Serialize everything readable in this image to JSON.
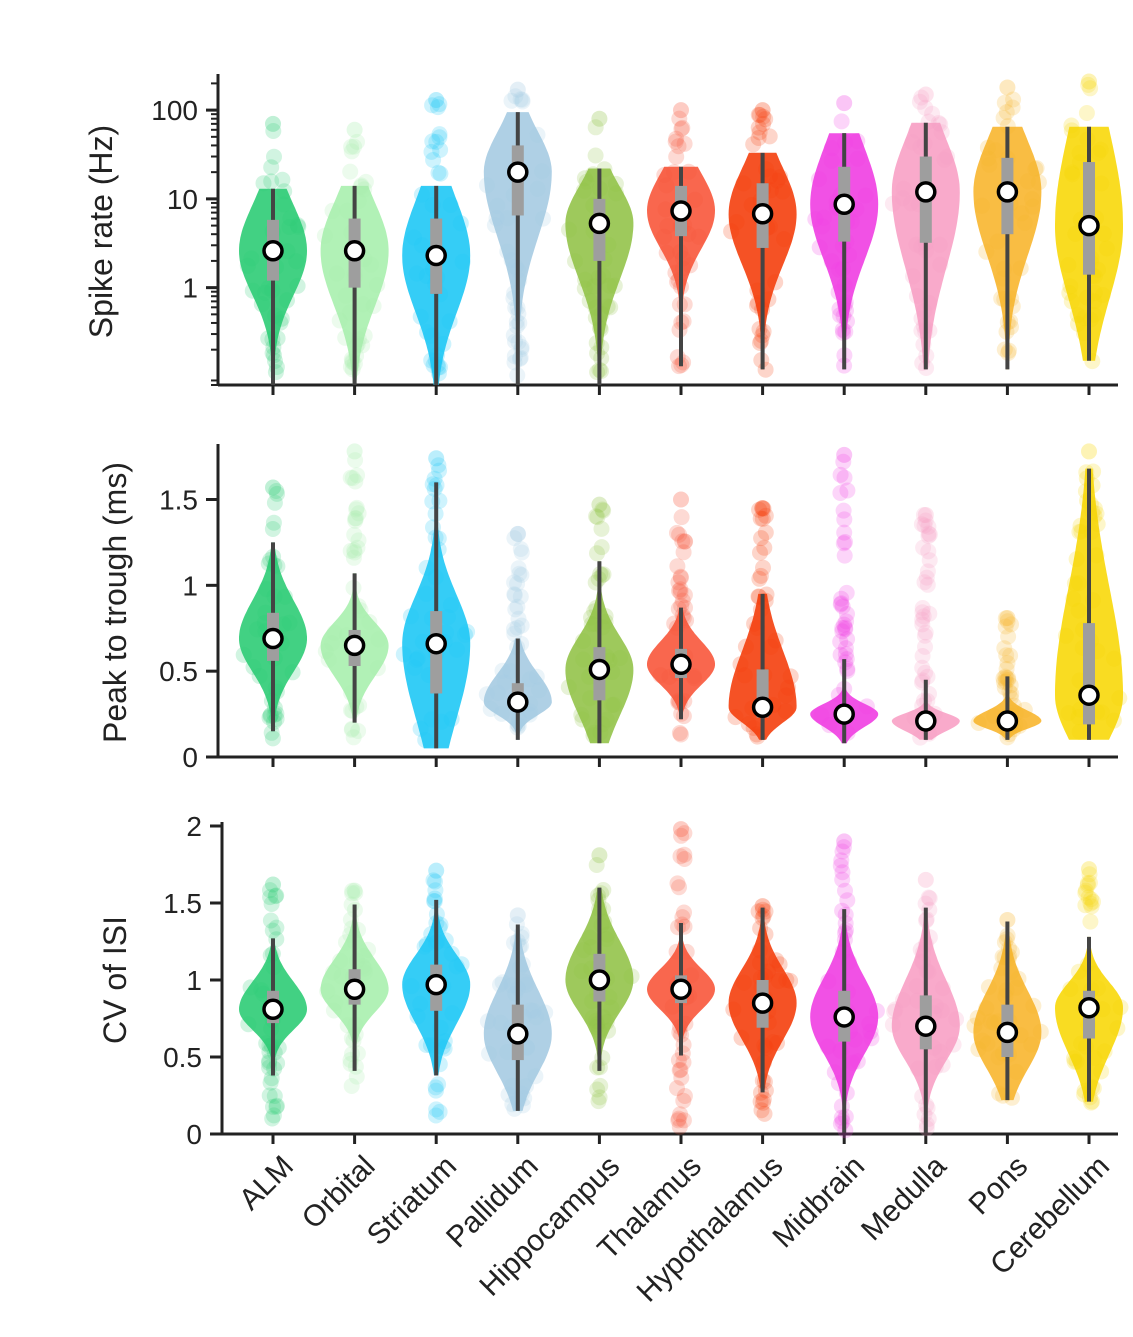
{
  "chart_data": [
    {
      "type": "violin",
      "ylabel": "Spike rate (Hz)",
      "yscale": "log",
      "ylim": [
        0.08,
        230
      ],
      "yticks": [
        {
          "value": 1,
          "label": "1"
        },
        {
          "value": 10,
          "label": "10"
        },
        {
          "value": 100,
          "label": "100"
        }
      ],
      "categories": [
        "ALM",
        "Orbital",
        "Striatum",
        "Pallidum",
        "Hippocampus",
        "Thalamus",
        "Hypothalamus",
        "Midbrain",
        "Medulla",
        "Pons",
        "Cerebellum"
      ],
      "series": [
        {
          "median": 2.6,
          "q1": 1.2,
          "q3": 5.8,
          "whisker_low": 0.08,
          "whisker_high": 13,
          "max": 70,
          "min": 0.08
        },
        {
          "median": 2.6,
          "q1": 1.0,
          "q3": 6.0,
          "whisker_low": 0.08,
          "whisker_high": 14,
          "max": 60,
          "min": 0.09
        },
        {
          "median": 2.3,
          "q1": 0.85,
          "q3": 6.0,
          "whisker_low": 0.08,
          "whisker_high": 14,
          "max": 130,
          "min": 0.08
        },
        {
          "median": 20,
          "q1": 6.5,
          "q3": 40,
          "whisker_low": 0.08,
          "whisker_high": 95,
          "max": 170,
          "min": 0.1
        },
        {
          "median": 5.3,
          "q1": 2.0,
          "q3": 10,
          "whisker_low": 0.08,
          "whisker_high": 22,
          "max": 80,
          "min": 0.09
        },
        {
          "median": 7.3,
          "q1": 3.8,
          "q3": 14,
          "whisker_low": 0.13,
          "whisker_high": 23,
          "max": 100,
          "min": 0.13
        },
        {
          "median": 6.8,
          "q1": 2.8,
          "q3": 15,
          "whisker_low": 0.12,
          "whisker_high": 33,
          "max": 100,
          "min": 0.11
        },
        {
          "median": 8.7,
          "q1": 3.3,
          "q3": 23,
          "whisker_low": 0.12,
          "whisker_high": 55,
          "max": 120,
          "min": 0.12
        },
        {
          "median": 12,
          "q1": 3.2,
          "q3": 30,
          "whisker_low": 0.12,
          "whisker_high": 72,
          "max": 150,
          "min": 0.12
        },
        {
          "median": 12,
          "q1": 4.0,
          "q3": 29,
          "whisker_low": 0.12,
          "whisker_high": 65,
          "max": 180,
          "min": 0.13
        },
        {
          "median": 5.0,
          "q1": 1.4,
          "q3": 26,
          "whisker_low": 0.15,
          "whisker_high": 65,
          "max": 210,
          "min": 0.14
        }
      ]
    },
    {
      "type": "violin",
      "ylabel": "Peak to trough (ms)",
      "yscale": "linear",
      "ylim": [
        0,
        1.8
      ],
      "yticks": [
        {
          "value": 0,
          "label": "0"
        },
        {
          "value": 0.5,
          "label": "0.5"
        },
        {
          "value": 1,
          "label": "1"
        },
        {
          "value": 1.5,
          "label": "1.5"
        }
      ],
      "categories": [
        "ALM",
        "Orbital",
        "Striatum",
        "Pallidum",
        "Hippocampus",
        "Thalamus",
        "Hypothalamus",
        "Midbrain",
        "Medulla",
        "Pons",
        "Cerebellum"
      ],
      "series": [
        {
          "median": 0.69,
          "q1": 0.56,
          "q3": 0.84,
          "whisker_low": 0.15,
          "whisker_high": 1.25,
          "max": 1.57,
          "min": 0.08
        },
        {
          "median": 0.65,
          "q1": 0.53,
          "q3": 0.74,
          "whisker_low": 0.2,
          "whisker_high": 1.07,
          "max": 1.78,
          "min": 0.1
        },
        {
          "median": 0.66,
          "q1": 0.37,
          "q3": 0.85,
          "whisker_low": 0.05,
          "whisker_high": 1.6,
          "max": 1.74,
          "min": 0.05
        },
        {
          "median": 0.32,
          "q1": 0.27,
          "q3": 0.43,
          "whisker_low": 0.1,
          "whisker_high": 0.69,
          "max": 1.3,
          "min": 0.1
        },
        {
          "median": 0.51,
          "q1": 0.33,
          "q3": 0.64,
          "whisker_low": 0.08,
          "whisker_high": 1.14,
          "max": 1.47,
          "min": 0.08
        },
        {
          "median": 0.54,
          "q1": 0.46,
          "q3": 0.63,
          "whisker_low": 0.22,
          "whisker_high": 0.87,
          "max": 1.5,
          "min": 0.1
        },
        {
          "median": 0.29,
          "q1": 0.23,
          "q3": 0.51,
          "whisker_low": 0.1,
          "whisker_high": 0.95,
          "max": 1.45,
          "min": 0.1
        },
        {
          "median": 0.25,
          "q1": 0.2,
          "q3": 0.29,
          "whisker_low": 0.08,
          "whisker_high": 0.57,
          "max": 1.76,
          "min": 0.08
        },
        {
          "median": 0.21,
          "q1": 0.17,
          "q3": 0.24,
          "whisker_low": 0.1,
          "whisker_high": 0.45,
          "max": 1.41,
          "min": 0.1
        },
        {
          "median": 0.21,
          "q1": 0.18,
          "q3": 0.25,
          "whisker_low": 0.1,
          "whisker_high": 0.47,
          "max": 0.81,
          "min": 0.1
        },
        {
          "median": 0.36,
          "q1": 0.19,
          "q3": 0.78,
          "whisker_low": 0.1,
          "whisker_high": 1.68,
          "max": 1.78,
          "min": 0.1
        }
      ]
    },
    {
      "type": "violin",
      "ylabel": "CV of ISI",
      "yscale": "linear",
      "ylim": [
        0,
        2
      ],
      "yticks": [
        {
          "value": 0,
          "label": "0"
        },
        {
          "value": 0.5,
          "label": "0.5"
        },
        {
          "value": 1,
          "label": "1"
        },
        {
          "value": 1.5,
          "label": "1.5"
        },
        {
          "value": 2,
          "label": "2"
        }
      ],
      "categories": [
        "ALM",
        "Orbital",
        "Striatum",
        "Pallidum",
        "Hippocampus",
        "Thalamus",
        "Hypothalamus",
        "Midbrain",
        "Medulla",
        "Pons",
        "Cerebellum"
      ],
      "series": [
        {
          "median": 0.81,
          "q1": 0.72,
          "q3": 0.93,
          "whisker_low": 0.38,
          "whisker_high": 1.27,
          "max": 1.62,
          "min": 0.03
        },
        {
          "median": 0.94,
          "q1": 0.84,
          "q3": 1.07,
          "whisker_low": 0.41,
          "whisker_high": 1.49,
          "max": 1.58,
          "min": 0.3
        },
        {
          "median": 0.97,
          "q1": 0.8,
          "q3": 1.1,
          "whisker_low": 0.38,
          "whisker_high": 1.52,
          "max": 1.71,
          "min": 0.05
        },
        {
          "median": 0.65,
          "q1": 0.48,
          "q3": 0.84,
          "whisker_low": 0.15,
          "whisker_high": 1.36,
          "max": 1.42,
          "min": 0.12
        },
        {
          "median": 1.0,
          "q1": 0.86,
          "q3": 1.17,
          "whisker_low": 0.41,
          "whisker_high": 1.6,
          "max": 1.81,
          "min": 0.2
        },
        {
          "median": 0.94,
          "q1": 0.85,
          "q3": 1.03,
          "whisker_low": 0.51,
          "whisker_high": 1.37,
          "max": 1.98,
          "min": 0.02
        },
        {
          "median": 0.85,
          "q1": 0.69,
          "q3": 1.0,
          "whisker_low": 0.27,
          "whisker_high": 1.47,
          "max": 1.48,
          "min": 0.13
        },
        {
          "median": 0.76,
          "q1": 0.6,
          "q3": 0.93,
          "whisker_low": 0.01,
          "whisker_high": 1.46,
          "max": 1.9,
          "min": 0.01
        },
        {
          "median": 0.7,
          "q1": 0.55,
          "q3": 0.9,
          "whisker_low": 0.01,
          "whisker_high": 1.47,
          "max": 1.65,
          "min": 0.01
        },
        {
          "median": 0.66,
          "q1": 0.5,
          "q3": 0.84,
          "whisker_low": 0.22,
          "whisker_high": 1.38,
          "max": 1.39,
          "min": 0.2
        },
        {
          "median": 0.82,
          "q1": 0.62,
          "q3": 0.93,
          "whisker_low": 0.21,
          "whisker_high": 1.28,
          "max": 1.72,
          "min": 0.2
        }
      ]
    }
  ],
  "colors": [
    "#2ecc76",
    "#a9efae",
    "#1fc8f5",
    "#a6cbe2",
    "#93c34a",
    "#f8573b",
    "#f43f0d",
    "#f03ee2",
    "#f8a1c5",
    "#f8b62f",
    "#f8d80a"
  ],
  "box_color": "#9e9e9e",
  "whisker_color": "#444444"
}
